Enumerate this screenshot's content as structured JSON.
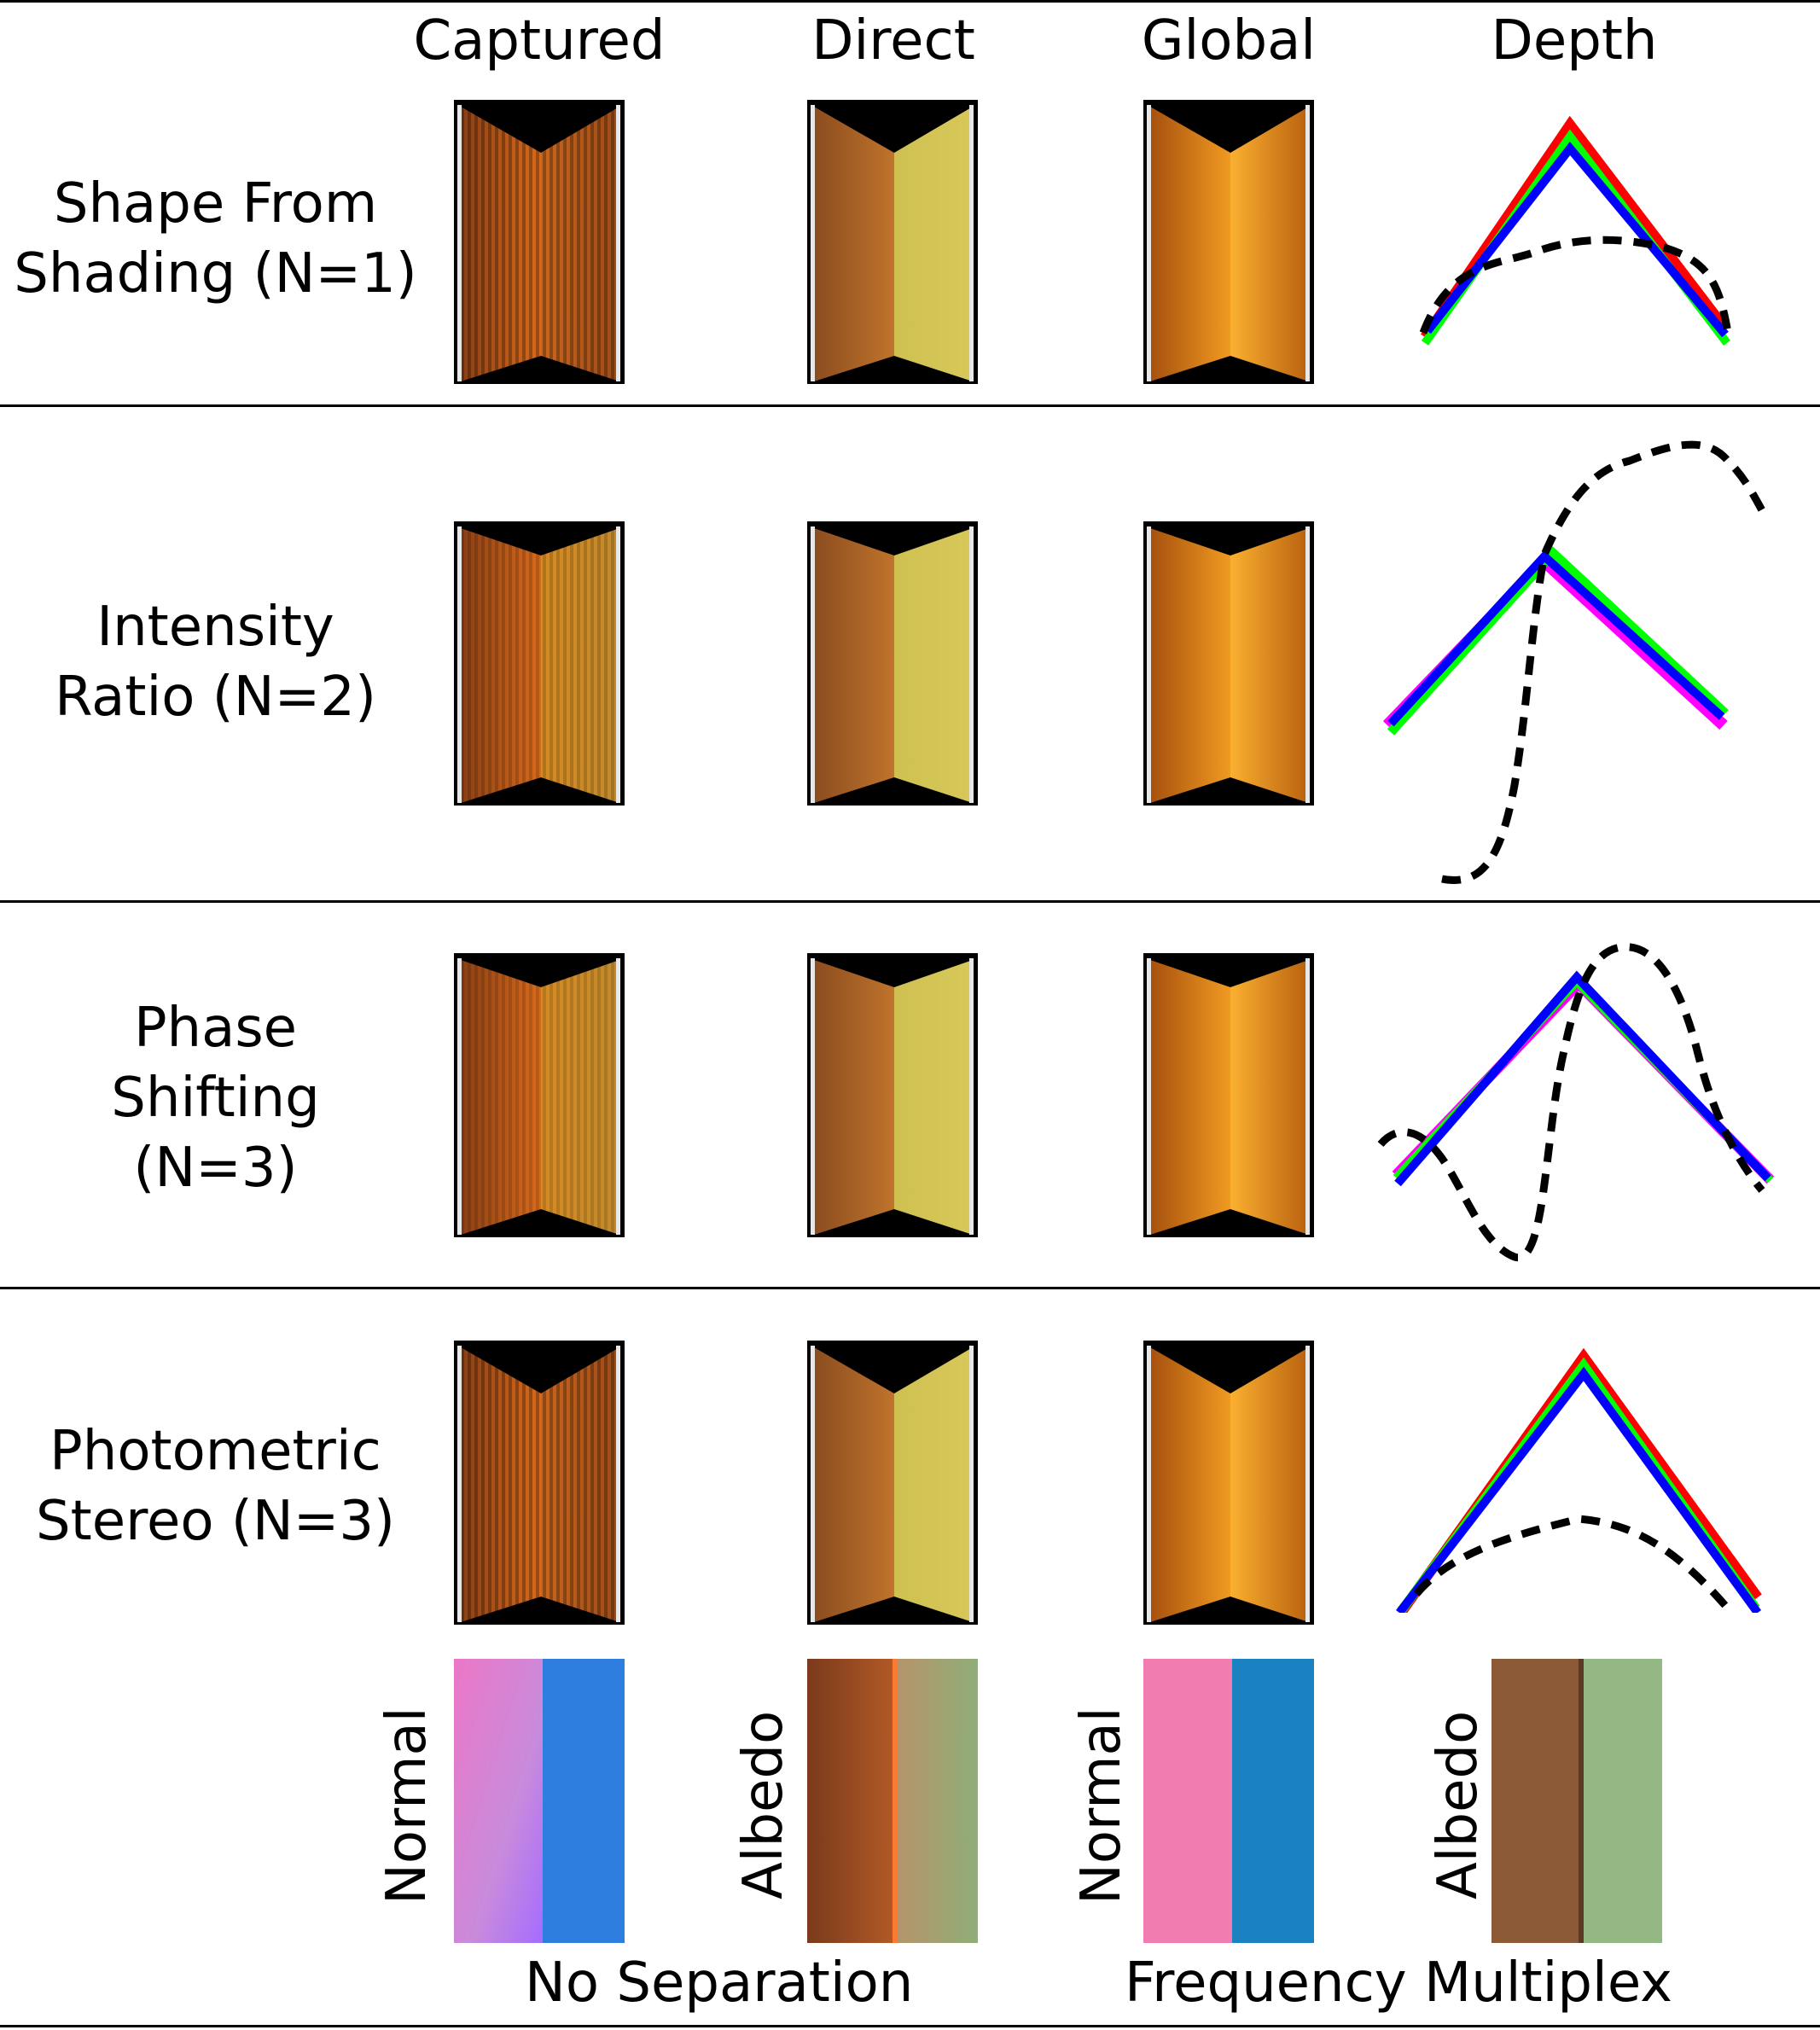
{
  "columns": {
    "captured": "Captured",
    "direct": "Direct",
    "global": "Global",
    "depth": "Depth"
  },
  "rows": [
    {
      "line1": "Shape From",
      "line2": "Shading (N=1)",
      "line3": ""
    },
    {
      "line1": "Intensity",
      "line2": "Ratio (N=2)",
      "line3": ""
    },
    {
      "line1": "Phase",
      "line2": "Shifting",
      "line3": "(N=3)"
    },
    {
      "line1": "Photometric",
      "line2": "Stereo (N=3)",
      "line3": ""
    }
  ],
  "bottom": {
    "normal_left": "Normal",
    "albedo_left": "Albedo",
    "normal_right": "Normal",
    "albedo_right": "Albedo",
    "caption_left": "No Separation",
    "caption_right": "Frequency Multiplex"
  },
  "colors": {
    "red": "#ff0000",
    "green": "#00ff00",
    "blue": "#0000ff",
    "magenta": "#ff00ff",
    "dashed": "#000000"
  }
}
